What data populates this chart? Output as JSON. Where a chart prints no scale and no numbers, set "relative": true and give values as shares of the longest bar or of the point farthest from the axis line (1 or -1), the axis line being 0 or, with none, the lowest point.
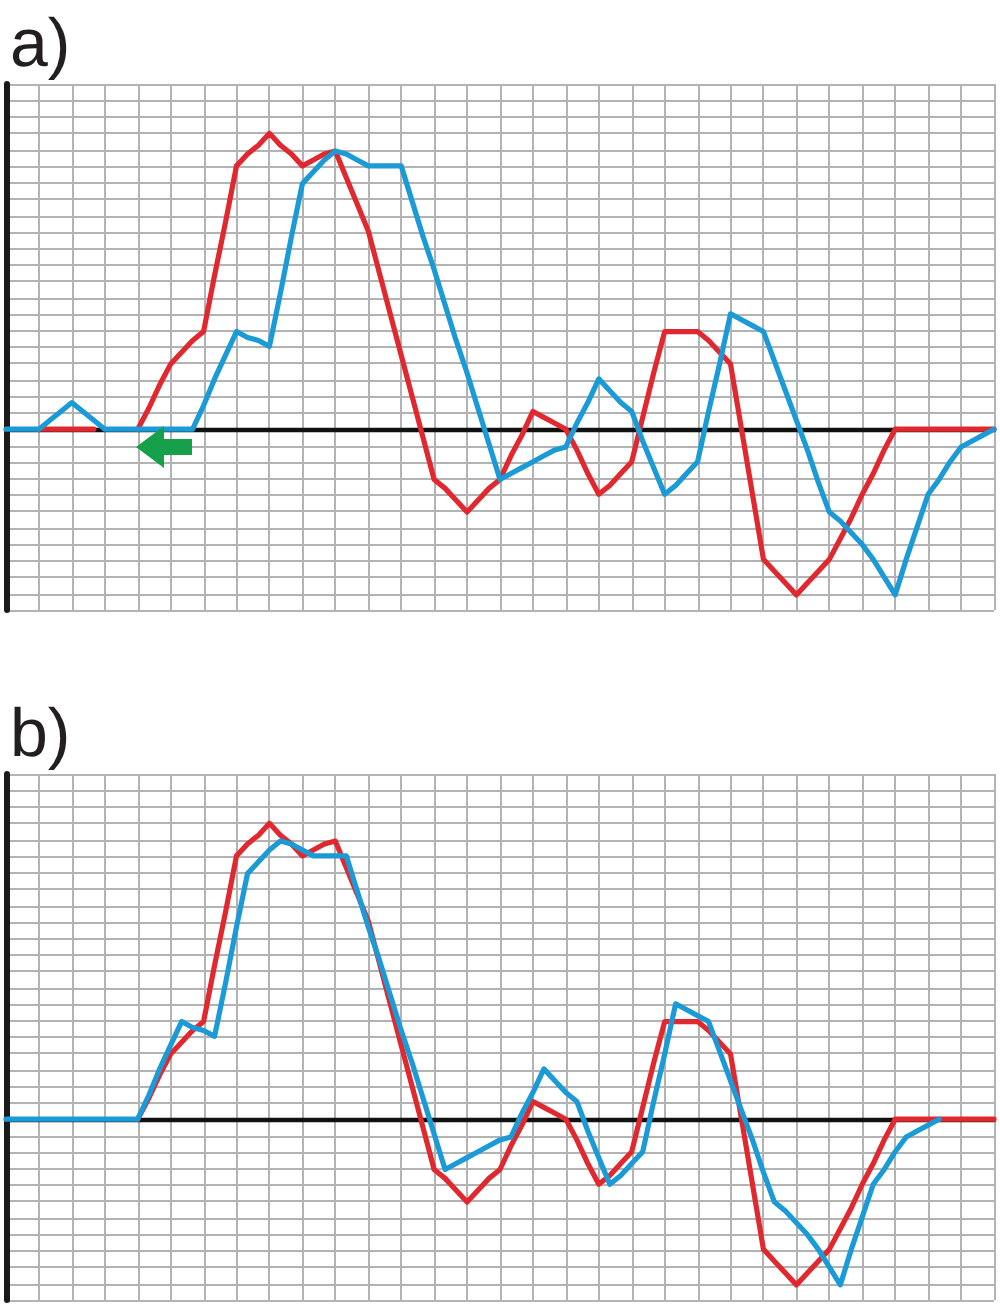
{
  "chart_data": [
    {
      "type": "line",
      "title": "a)",
      "relative": true,
      "grid": true,
      "marker": "none",
      "categories": [
        null,
        null,
        null,
        null,
        null,
        null,
        null,
        null,
        null,
        null,
        null,
        null,
        null,
        null,
        null,
        null,
        null,
        null,
        null,
        null,
        null,
        null,
        null,
        null,
        null,
        null,
        null,
        null,
        null,
        null,
        null,
        null,
        null,
        null,
        null,
        null,
        null,
        null,
        null,
        null,
        null,
        null,
        null,
        null,
        null,
        null,
        null,
        null,
        null,
        null,
        null,
        null,
        null,
        null,
        null,
        null,
        null,
        null,
        null,
        null,
        null,
        null,
        null,
        null,
        null,
        null,
        null,
        null,
        null,
        null,
        null,
        null,
        null,
        null,
        null,
        null,
        null,
        null,
        null,
        null,
        null,
        null,
        null,
        null,
        null,
        null,
        null,
        null,
        null,
        null,
        null
      ],
      "series": [
        {
          "color": "#e0282e",
          "values": [
            null,
            null,
            null,
            0,
            0,
            0,
            0,
            0,
            0,
            null,
            null,
            null,
            0,
            0.07,
            0.15,
            0.22,
            0.26,
            0.3,
            0.33,
            0.52,
            0.7,
            0.89,
            0.93,
            0.96,
            1,
            0.96,
            0.93,
            0.89,
            0.91,
            0.93,
            0.94,
            0.85,
            0.76,
            0.67,
            0.53,
            0.39,
            0.25,
            0.11,
            -0.03,
            -0.17,
            -0.2,
            -0.24,
            -0.28,
            -0.24,
            -0.2,
            -0.17,
            -0.09,
            -0.02,
            0.06,
            0.04,
            0.02,
            0,
            -0.07,
            -0.15,
            -0.22,
            -0.19,
            -0.15,
            -0.11,
            0.04,
            0.19,
            0.33,
            0.33,
            0.33,
            0.33,
            0.3,
            0.26,
            0.22,
            0,
            -0.22,
            -0.44,
            -0.48,
            -0.52,
            -0.56,
            -0.52,
            -0.48,
            -0.44,
            -0.37,
            -0.3,
            -0.22,
            -0.15,
            -0.07,
            0,
            0,
            0,
            0,
            0,
            0,
            0,
            0,
            0,
            0
          ]
        },
        {
          "color": "#1a9ad6",
          "values": [
            0,
            0,
            0,
            0,
            0.03,
            0.06,
            0.09,
            0.06,
            0.03,
            0,
            0,
            0,
            0,
            0,
            0,
            0,
            0,
            0,
            0.08,
            0.17,
            0.25,
            0.33,
            0.31,
            0.3,
            0.28,
            0.46,
            0.65,
            0.83,
            0.87,
            0.91,
            0.94,
            0.93,
            0.91,
            0.89,
            0.89,
            0.89,
            0.89,
            0.77,
            0.65,
            0.54,
            0.42,
            0.3,
            0.19,
            0.07,
            -0.05,
            -0.17,
            -0.15,
            -0.13,
            -0.11,
            -0.09,
            -0.07,
            -0.06,
            0.02,
            0.09,
            0.17,
            0.13,
            0.09,
            0.06,
            -0.04,
            -0.13,
            -0.22,
            -0.19,
            -0.15,
            -0.11,
            0.06,
            0.22,
            0.39,
            0.37,
            0.35,
            0.33,
            0.23,
            0.13,
            0.03,
            -0.07,
            -0.18,
            -0.28,
            -0.31,
            -0.35,
            -0.39,
            -0.44,
            -0.5,
            -0.56,
            -0.44,
            -0.33,
            -0.22,
            -0.17,
            -0.11,
            -0.06,
            -0.04,
            -0.02,
            0
          ]
        }
      ]
    },
    {
      "type": "line",
      "title": "b)",
      "relative": true,
      "grid": true,
      "marker": "none",
      "categories": [
        null,
        null,
        null,
        null,
        null,
        null,
        null,
        null,
        null,
        null,
        null,
        null,
        null,
        null,
        null,
        null,
        null,
        null,
        null,
        null,
        null,
        null,
        null,
        null,
        null,
        null,
        null,
        null,
        null,
        null,
        null,
        null,
        null,
        null,
        null,
        null,
        null,
        null,
        null,
        null,
        null,
        null,
        null,
        null,
        null,
        null,
        null,
        null,
        null,
        null,
        null,
        null,
        null,
        null,
        null,
        null,
        null,
        null,
        null,
        null,
        null,
        null,
        null,
        null,
        null,
        null,
        null,
        null,
        null,
        null,
        null,
        null,
        null,
        null,
        null,
        null,
        null,
        null,
        null,
        null,
        null,
        null,
        null,
        null,
        null,
        null,
        null,
        null,
        null,
        null,
        null
      ],
      "series": [
        {
          "color": "#e0282e",
          "values": [
            null,
            null,
            null,
            null,
            null,
            null,
            null,
            null,
            null,
            null,
            null,
            null,
            0,
            0.07,
            0.15,
            0.22,
            0.26,
            0.3,
            0.33,
            0.52,
            0.7,
            0.89,
            0.93,
            0.96,
            1,
            0.96,
            0.93,
            0.89,
            0.91,
            0.93,
            0.94,
            0.85,
            0.76,
            0.67,
            0.53,
            0.39,
            0.25,
            0.11,
            -0.03,
            -0.17,
            -0.2,
            -0.24,
            -0.28,
            -0.24,
            -0.2,
            -0.17,
            -0.09,
            -0.02,
            0.06,
            0.04,
            0.02,
            0,
            -0.07,
            -0.15,
            -0.22,
            -0.19,
            -0.15,
            -0.11,
            0.04,
            0.19,
            0.33,
            0.33,
            0.33,
            0.33,
            0.3,
            0.26,
            0.22,
            0,
            -0.22,
            -0.44,
            -0.48,
            -0.52,
            -0.56,
            -0.52,
            -0.48,
            -0.44,
            -0.37,
            -0.3,
            -0.22,
            -0.15,
            -0.07,
            0,
            0,
            0,
            0,
            0,
            0,
            0,
            0,
            0,
            0
          ]
        },
        {
          "color": "#1a9ad6",
          "values": [
            0,
            0,
            0,
            0,
            0,
            0,
            0,
            0,
            0,
            0,
            0,
            0,
            0,
            0.08,
            0.17,
            0.25,
            0.33,
            0.31,
            0.3,
            0.28,
            0.46,
            0.65,
            0.83,
            0.87,
            0.91,
            0.94,
            0.93,
            0.91,
            0.89,
            0.89,
            0.89,
            0.89,
            0.77,
            0.65,
            0.54,
            0.42,
            0.3,
            0.19,
            0.07,
            -0.05,
            -0.17,
            -0.15,
            -0.13,
            -0.11,
            -0.09,
            -0.07,
            -0.06,
            0.02,
            0.09,
            0.17,
            0.13,
            0.09,
            0.06,
            -0.04,
            -0.13,
            -0.22,
            -0.19,
            -0.15,
            -0.11,
            0.06,
            0.22,
            0.39,
            0.37,
            0.35,
            0.33,
            0.23,
            0.13,
            0.03,
            -0.07,
            -0.18,
            -0.28,
            -0.31,
            -0.35,
            -0.39,
            -0.44,
            -0.5,
            -0.56,
            -0.44,
            -0.33,
            -0.22,
            -0.17,
            -0.11,
            -0.06,
            -0.04,
            -0.02,
            0,
            null,
            null,
            null,
            null,
            null
          ]
        }
      ]
    }
  ]
}
